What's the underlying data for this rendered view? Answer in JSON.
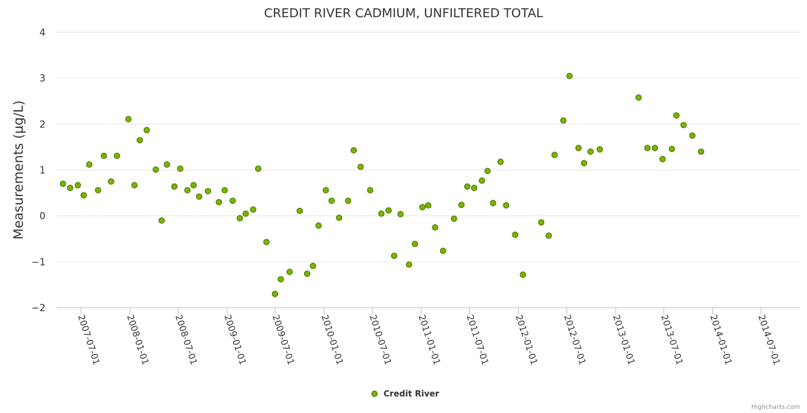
{
  "chart_data": {
    "type": "scatter",
    "title": "CREDIT RIVER CADMIUM, UNFILTERED TOTAL",
    "ylabel": "Measurements (µg/L)",
    "xlabel": "",
    "ylim": [
      -2,
      4
    ],
    "yticks": [
      -2,
      -1,
      0,
      1,
      2,
      3,
      4
    ],
    "xlim": [
      "2007-04-01",
      "2014-11-25"
    ],
    "xticks": [
      "2007-07-01",
      "2008-01-01",
      "2008-07-01",
      "2009-01-01",
      "2009-07-01",
      "2010-01-01",
      "2010-07-01",
      "2011-01-01",
      "2011-07-01",
      "2012-01-01",
      "2012-07-01",
      "2013-01-01",
      "2013-07-01",
      "2014-01-01",
      "2014-07-01"
    ],
    "grid": "horizontal",
    "legend_position": "bottom-center",
    "series_color": "#7cb500",
    "series": [
      {
        "name": "Credit River",
        "points": [
          [
            "2007-04-25",
            0.7
          ],
          [
            "2007-05-22",
            0.61
          ],
          [
            "2007-06-20",
            0.67
          ],
          [
            "2007-07-12",
            0.45
          ],
          [
            "2007-08-02",
            1.12
          ],
          [
            "2007-09-04",
            0.56
          ],
          [
            "2007-09-26",
            1.31
          ],
          [
            "2007-10-23",
            0.75
          ],
          [
            "2007-11-14",
            1.31
          ],
          [
            "2007-12-27",
            2.11
          ],
          [
            "2008-01-19",
            0.67
          ],
          [
            "2008-02-08",
            1.65
          ],
          [
            "2008-03-05",
            1.87
          ],
          [
            "2008-04-08",
            1.01
          ],
          [
            "2008-04-30",
            -0.1
          ],
          [
            "2008-05-20",
            1.12
          ],
          [
            "2008-06-17",
            0.64
          ],
          [
            "2008-07-09",
            1.03
          ],
          [
            "2008-08-05",
            0.56
          ],
          [
            "2008-08-28",
            0.67
          ],
          [
            "2008-09-18",
            0.42
          ],
          [
            "2008-10-21",
            0.54
          ],
          [
            "2008-12-01",
            0.3
          ],
          [
            "2008-12-23",
            0.56
          ],
          [
            "2009-01-22",
            0.33
          ],
          [
            "2009-02-18",
            -0.05
          ],
          [
            "2009-03-12",
            0.05
          ],
          [
            "2009-04-09",
            0.14
          ],
          [
            "2009-04-28",
            1.03
          ],
          [
            "2009-05-29",
            -0.57
          ],
          [
            "2009-06-30",
            -1.7
          ],
          [
            "2009-07-22",
            -1.38
          ],
          [
            "2009-08-24",
            -1.22
          ],
          [
            "2009-10-01",
            0.11
          ],
          [
            "2009-10-29",
            -1.26
          ],
          [
            "2009-11-20",
            -1.09
          ],
          [
            "2009-12-11",
            -0.21
          ],
          [
            "2010-01-07",
            0.56
          ],
          [
            "2010-01-29",
            0.33
          ],
          [
            "2010-02-26",
            -0.04
          ],
          [
            "2010-04-01",
            0.33
          ],
          [
            "2010-04-22",
            1.43
          ],
          [
            "2010-05-18",
            1.07
          ],
          [
            "2010-06-23",
            0.56
          ],
          [
            "2010-08-04",
            0.05
          ],
          [
            "2010-08-31",
            0.12
          ],
          [
            "2010-09-21",
            -0.87
          ],
          [
            "2010-10-15",
            0.04
          ],
          [
            "2010-11-16",
            -1.06
          ],
          [
            "2010-12-08",
            -0.61
          ],
          [
            "2011-01-05",
            0.19
          ],
          [
            "2011-01-27",
            0.23
          ],
          [
            "2011-02-22",
            -0.25
          ],
          [
            "2011-03-24",
            -0.76
          ],
          [
            "2011-05-04",
            -0.06
          ],
          [
            "2011-06-01",
            0.24
          ],
          [
            "2011-06-23",
            0.64
          ],
          [
            "2011-07-19",
            0.61
          ],
          [
            "2011-08-17",
            0.77
          ],
          [
            "2011-09-07",
            0.98
          ],
          [
            "2011-09-28",
            0.28
          ],
          [
            "2011-10-26",
            1.18
          ],
          [
            "2011-11-16",
            0.23
          ],
          [
            "2011-12-20",
            -0.41
          ],
          [
            "2012-01-18",
            -1.28
          ],
          [
            "2012-03-27",
            -0.14
          ],
          [
            "2012-04-24",
            -0.43
          ],
          [
            "2012-05-16",
            1.33
          ],
          [
            "2012-06-18",
            2.08
          ],
          [
            "2012-07-11",
            3.05
          ],
          [
            "2012-08-14",
            1.48
          ],
          [
            "2012-09-04",
            1.15
          ],
          [
            "2012-09-28",
            1.4
          ],
          [
            "2012-11-02",
            1.45
          ],
          [
            "2013-03-28",
            2.58
          ],
          [
            "2013-04-30",
            1.48
          ],
          [
            "2013-05-28",
            1.48
          ],
          [
            "2013-06-26",
            1.24
          ],
          [
            "2013-07-31",
            1.46
          ],
          [
            "2013-08-17",
            2.19
          ],
          [
            "2013-09-13",
            1.98
          ],
          [
            "2013-10-16",
            1.75
          ],
          [
            "2013-11-18",
            1.4
          ]
        ]
      }
    ],
    "credits": "Highcharts.com"
  }
}
